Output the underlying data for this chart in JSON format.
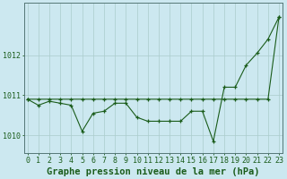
{
  "title": "Graphe pression niveau de la mer (hPa)",
  "background_color": "#cce8f0",
  "line_color": "#1a5c1a",
  "grid_color": "#aacccc",
  "x_values": [
    0,
    1,
    2,
    3,
    4,
    5,
    6,
    7,
    8,
    9,
    10,
    11,
    12,
    13,
    14,
    15,
    16,
    17,
    18,
    19,
    20,
    21,
    22,
    23
  ],
  "y_zigzag": [
    1010.9,
    1010.75,
    1010.85,
    1010.8,
    1010.75,
    1010.1,
    1010.55,
    1010.6,
    1010.8,
    1010.8,
    1010.45,
    1010.35,
    1010.35,
    1010.35,
    1010.35,
    1010.6,
    1010.6,
    1009.85,
    1011.2,
    1011.2,
    1011.75,
    1012.05,
    1012.4,
    1012.95
  ],
  "y_trend": [
    1010.9,
    1010.9,
    1010.9,
    1010.9,
    1010.9,
    1010.9,
    1010.9,
    1010.9,
    1010.9,
    1010.9,
    1010.9,
    1010.9,
    1010.9,
    1010.9,
    1010.9,
    1010.9,
    1010.9,
    1010.9,
    1010.9,
    1010.9,
    1010.9,
    1010.9,
    1010.9,
    1012.95
  ],
  "yticks": [
    1010,
    1011,
    1012
  ],
  "ylim": [
    1009.55,
    1013.3
  ],
  "xlim": [
    -0.3,
    23.3
  ],
  "title_fontsize": 7.5,
  "tick_fontsize": 6
}
